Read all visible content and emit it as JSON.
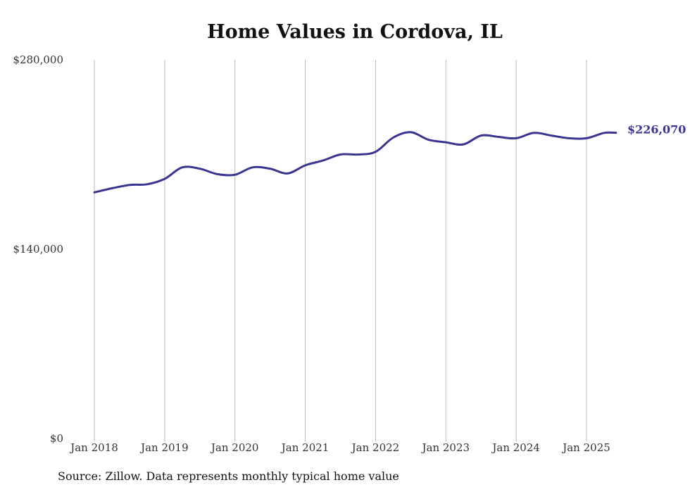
{
  "chart_data": {
    "type": "line",
    "title": "Home Values in Cordova, IL",
    "source_note": "Source: Zillow. Data represents monthly typical home value",
    "xlabel": "",
    "ylabel": "",
    "ylim": [
      0,
      280000
    ],
    "y_ticks": [
      {
        "value": 0,
        "label": "$0"
      },
      {
        "value": 140000,
        "label": "$140,000"
      },
      {
        "value": 280000,
        "label": "$280,000"
      }
    ],
    "x_ticks": [
      {
        "value": 2018,
        "label": "Jan 2018"
      },
      {
        "value": 2019,
        "label": "Jan 2019"
      },
      {
        "value": 2020,
        "label": "Jan 2020"
      },
      {
        "value": 2021,
        "label": "Jan 2021"
      },
      {
        "value": 2022,
        "label": "Jan 2022"
      },
      {
        "value": 2023,
        "label": "Jan 2023"
      },
      {
        "value": 2024,
        "label": "Jan 2024"
      },
      {
        "value": 2025,
        "label": "Jan 2025"
      }
    ],
    "grid": "vertical",
    "line_color": "#3a3590",
    "end_label": "$226,070",
    "series": [
      {
        "points": [
          [
            2018.0,
            182000
          ],
          [
            2018.25,
            185000
          ],
          [
            2018.5,
            187500
          ],
          [
            2018.75,
            188000
          ],
          [
            2019.0,
            192000
          ],
          [
            2019.25,
            200500
          ],
          [
            2019.5,
            199500
          ],
          [
            2019.75,
            195500
          ],
          [
            2020.0,
            195000
          ],
          [
            2020.25,
            200500
          ],
          [
            2020.5,
            199500
          ],
          [
            2020.75,
            196000
          ],
          [
            2021.0,
            202000
          ],
          [
            2021.25,
            205500
          ],
          [
            2021.5,
            210000
          ],
          [
            2021.75,
            210000
          ],
          [
            2022.0,
            212000
          ],
          [
            2022.25,
            222500
          ],
          [
            2022.5,
            226500
          ],
          [
            2022.75,
            221000
          ],
          [
            2023.0,
            219000
          ],
          [
            2023.25,
            217500
          ],
          [
            2023.5,
            224000
          ],
          [
            2023.75,
            223000
          ],
          [
            2024.0,
            222000
          ],
          [
            2024.25,
            226000
          ],
          [
            2024.5,
            224000
          ],
          [
            2024.75,
            222000
          ],
          [
            2025.0,
            222000
          ],
          [
            2025.25,
            226000
          ],
          [
            2025.42,
            226070
          ]
        ]
      }
    ]
  }
}
